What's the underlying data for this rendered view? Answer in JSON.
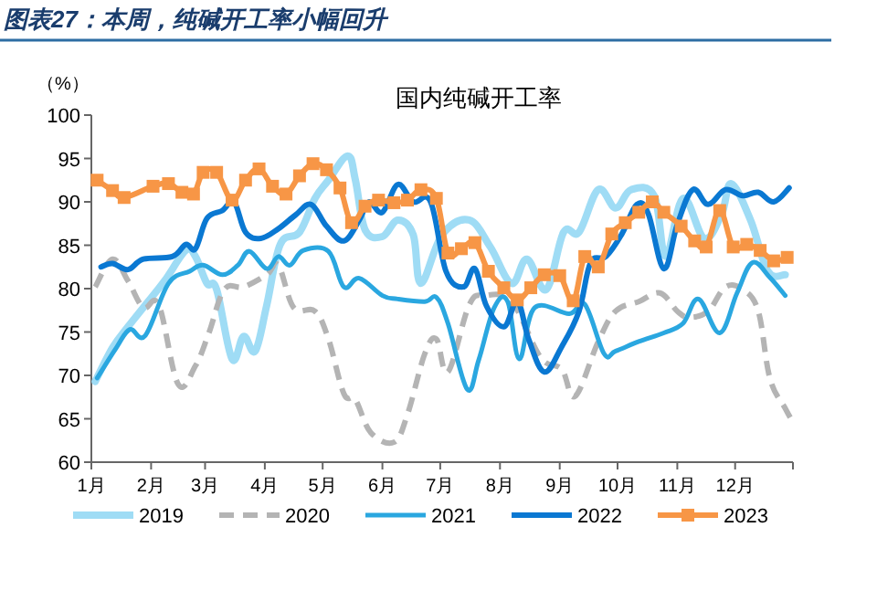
{
  "chart_data": {
    "type": "line",
    "title": "图表27：本周，纯碱开工率小幅回升",
    "subtitle": "国内纯碱开工率",
    "ylabel": "（%）",
    "xlim": [
      "--01-01",
      "--12-31"
    ],
    "xticks": [
      {
        "value": "--01-01",
        "label": "1月"
      },
      {
        "value": "--02-01",
        "label": "2月"
      },
      {
        "value": "--03-01",
        "label": "3月"
      },
      {
        "value": "--04-01",
        "label": "4月"
      },
      {
        "value": "--05-01",
        "label": "5月"
      },
      {
        "value": "--06-01",
        "label": "6月"
      },
      {
        "value": "--07-01",
        "label": "7月"
      },
      {
        "value": "--08-01",
        "label": "8月"
      },
      {
        "value": "--09-01",
        "label": "9月"
      },
      {
        "value": "--10-01",
        "label": "10月"
      },
      {
        "value": "--11-01",
        "label": "11月"
      },
      {
        "value": "--12-01",
        "label": "12月"
      },
      {
        "value": "--12-31",
        "label": null
      }
    ],
    "ylim": [
      60,
      100
    ],
    "yticks": [
      60,
      65,
      70,
      75,
      80,
      85,
      90,
      95,
      100
    ],
    "grid": false,
    "legend": "bottom",
    "marker": "none",
    "series": [
      {
        "name": "2019",
        "color": "#9fdcf5",
        "line_style": "solid",
        "x": [
          "--01-03",
          "--01-12",
          "--01-20",
          "--01-29",
          "--02-08",
          "--02-19",
          "--02-24",
          "--03-02",
          "--03-07",
          "--03-15",
          "--03-21",
          "--03-27",
          "--04-02",
          "--04-09",
          "--04-19",
          "--04-27",
          "--05-04",
          "--05-14",
          "--05-18",
          "--05-23",
          "--06-01",
          "--06-09",
          "--06-17",
          "--06-21",
          "--07-02",
          "--07-16",
          "--07-27",
          "--08-07",
          "--08-15",
          "--08-25",
          "--09-03",
          "--09-11",
          "--09-21",
          "--09-30",
          "--10-08",
          "--10-20",
          "--10-26",
          "--11-04",
          "--11-15",
          "--11-24",
          "--11-29",
          "--12-09",
          "--12-18",
          "--12-27"
        ],
        "values": [
          69.3,
          73.2,
          75.6,
          78.1,
          80.9,
          84.4,
          83.7,
          80.6,
          79.9,
          71.9,
          74.5,
          72.8,
          78.1,
          85.1,
          86.5,
          90.4,
          92.5,
          95.3,
          92.5,
          86.8,
          86.0,
          87.9,
          86.2,
          80.6,
          86.2,
          87.9,
          84.8,
          80.6,
          83.4,
          79.9,
          86.5,
          86.5,
          91.4,
          89.3,
          91.4,
          90.7,
          83.7,
          90.4,
          85.8,
          88.6,
          92.1,
          87.9,
          82.0,
          81.6
        ]
      },
      {
        "name": "2020",
        "color": "#b4b4b4",
        "line_style": "dashed",
        "x": [
          "--01-03",
          "--01-12",
          "--01-20",
          "--01-28",
          "--02-05",
          "--02-15",
          "--02-24",
          "--03-03",
          "--03-11",
          "--03-21",
          "--04-02",
          "--04-08",
          "--04-16",
          "--04-27",
          "--05-04",
          "--05-12",
          "--05-18",
          "--05-26",
          "--06-07",
          "--06-14",
          "--06-23",
          "--06-29",
          "--07-05",
          "--07-16",
          "--07-24",
          "--08-07",
          "--08-22",
          "--09-02",
          "--09-09",
          "--09-21",
          "--09-30",
          "--10-12",
          "--10-23",
          "--11-01",
          "--11-07",
          "--11-17",
          "--11-26",
          "--12-05",
          "--12-13",
          "--12-19",
          "--12-27",
          "--12-31"
        ],
        "values": [
          80.2,
          83.4,
          80.9,
          77.8,
          78.1,
          69.0,
          71.1,
          74.9,
          79.9,
          80.2,
          81.6,
          82.7,
          77.8,
          77.4,
          74.2,
          67.9,
          67.2,
          63.4,
          62.3,
          65.5,
          72.5,
          74.2,
          70.4,
          78.1,
          79.2,
          78.5,
          72.1,
          70.7,
          67.6,
          73.9,
          77.4,
          78.5,
          79.5,
          77.4,
          76.7,
          77.4,
          80.2,
          79.9,
          77.4,
          69.7,
          66.2,
          64.6
        ]
      },
      {
        "name": "2021",
        "color": "#2aa7e0",
        "line_style": "solid",
        "x": [
          "--01-04",
          "--01-14",
          "--01-21",
          "--01-29",
          "--02-10",
          "--02-21",
          "--02-28",
          "--03-10",
          "--03-18",
          "--03-24",
          "--04-02",
          "--04-08",
          "--04-14",
          "--04-21",
          "--05-04",
          "--05-12",
          "--05-20",
          "--06-01",
          "--06-09",
          "--06-23",
          "--06-29",
          "--07-05",
          "--07-15",
          "--07-21",
          "--07-29",
          "--08-05",
          "--08-11",
          "--08-19",
          "--09-06",
          "--09-14",
          "--09-24",
          "--09-30",
          "--10-12",
          "--10-25",
          "--11-04",
          "--11-12",
          "--11-23",
          "--12-02",
          "--12-10",
          "--12-19",
          "--12-27"
        ],
        "values": [
          69.7,
          73.2,
          75.3,
          74.6,
          80.6,
          82.0,
          82.7,
          81.6,
          82.7,
          84.3,
          82.3,
          83.7,
          82.7,
          84.4,
          84.3,
          80.2,
          81.2,
          79.2,
          78.8,
          78.5,
          79.0,
          76.0,
          68.4,
          71.8,
          77.8,
          78.5,
          71.9,
          77.8,
          77.1,
          78.2,
          72.5,
          72.8,
          73.9,
          74.9,
          76.0,
          78.8,
          74.9,
          79.5,
          83.0,
          81.3,
          79.2
        ]
      },
      {
        "name": "2022",
        "color": "#0a78d2",
        "line_style": "solid",
        "x": [
          "--01-06",
          "--01-12",
          "--01-20",
          "--01-28",
          "--02-12",
          "--02-19",
          "--02-24",
          "--03-02",
          "--03-10",
          "--03-16",
          "--03-22",
          "--03-30",
          "--04-08",
          "--04-17",
          "--04-25",
          "--05-03",
          "--05-12",
          "--05-20",
          "--05-25",
          "--06-01",
          "--06-09",
          "--06-17",
          "--06-26",
          "--07-04",
          "--07-13",
          "--07-19",
          "--07-25",
          "--08-03",
          "--08-10",
          "--08-16",
          "--08-24",
          "--09-02",
          "--09-11",
          "--09-17",
          "--09-25",
          "--10-03",
          "--10-11",
          "--10-17",
          "--10-25",
          "--11-01",
          "--11-09",
          "--11-17",
          "--11-26",
          "--12-05",
          "--12-13",
          "--12-21",
          "--12-29"
        ],
        "values": [
          82.5,
          82.9,
          82.2,
          83.4,
          83.7,
          85.1,
          84.6,
          88.1,
          89.0,
          90.0,
          86.5,
          85.8,
          86.9,
          88.5,
          89.7,
          87.2,
          85.5,
          87.9,
          90.0,
          88.8,
          92.0,
          90.0,
          90.0,
          82.0,
          80.2,
          82.3,
          78.0,
          75.6,
          78.5,
          74.1,
          70.4,
          73.3,
          77.4,
          83.0,
          83.7,
          86.2,
          89.7,
          88.6,
          82.3,
          87.4,
          91.4,
          89.7,
          91.4,
          90.7,
          91.1,
          90.0,
          91.6
        ]
      },
      {
        "name": "2023",
        "color": "#f79646",
        "line_style": "solid",
        "marker": "square",
        "x": [
          "--01-04",
          "--01-12",
          "--01-18",
          "--02-02",
          "--02-10",
          "--02-17",
          "--02-23",
          "--02-28",
          "--03-07",
          "--03-15",
          "--03-22",
          "--03-29",
          "--04-05",
          "--04-12",
          "--04-19",
          "--04-26",
          "--05-03",
          "--05-10",
          "--05-16",
          "--05-23",
          "--05-30",
          "--06-07",
          "--06-14",
          "--06-21",
          "--06-29",
          "--07-05",
          "--07-12",
          "--07-19",
          "--07-26",
          "--08-03",
          "--08-10",
          "--08-17",
          "--08-24",
          "--09-01",
          "--09-08",
          "--09-14",
          "--09-21",
          "--09-28",
          "--10-05",
          "--10-12",
          "--10-19",
          "--10-25",
          "--11-03",
          "--11-10",
          "--11-16",
          "--11-23",
          "--11-30",
          "--12-07",
          "--12-14",
          "--12-21",
          "--12-28"
        ],
        "values": [
          92.5,
          91.3,
          90.5,
          91.8,
          92.1,
          91.1,
          90.9,
          93.4,
          93.4,
          90.2,
          92.5,
          93.8,
          91.8,
          90.9,
          93.0,
          94.4,
          93.7,
          91.6,
          87.6,
          89.5,
          90.2,
          89.9,
          90.2,
          91.4,
          90.4,
          84.1,
          84.6,
          85.3,
          82.0,
          80.1,
          78.7,
          80.1,
          81.6,
          81.5,
          78.6,
          83.7,
          82.5,
          86.3,
          87.6,
          88.8,
          90.0,
          88.8,
          87.2,
          85.5,
          84.8,
          89.0,
          84.8,
          85.1,
          84.4,
          83.2,
          83.6
        ]
      }
    ]
  }
}
